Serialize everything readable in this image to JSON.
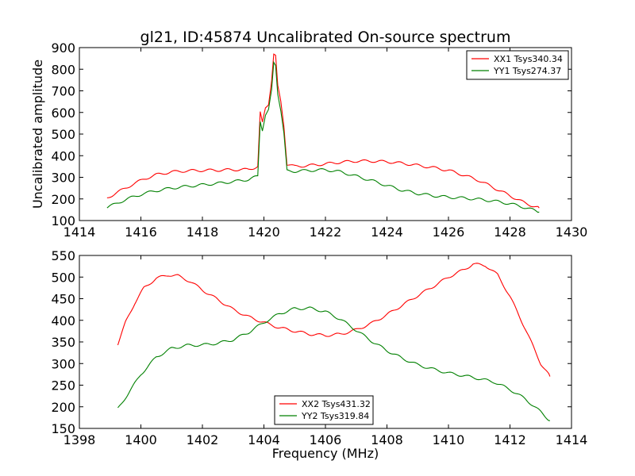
{
  "figure_title": "gl21, ID:45874 Uncalibrated On-source spectrum",
  "chart_data": [
    {
      "type": "line",
      "title": "gl21, ID:45874 Uncalibrated On-source spectrum",
      "xlabel": "",
      "ylabel": "Uncalibrated amplitude",
      "xlim": [
        1414,
        1430
      ],
      "ylim": [
        100,
        900
      ],
      "xticks": [
        1414,
        1416,
        1418,
        1420,
        1422,
        1424,
        1426,
        1428,
        1430
      ],
      "yticks": [
        100,
        200,
        300,
        400,
        500,
        600,
        700,
        800,
        900
      ],
      "grid": false,
      "legend_position": "top-right",
      "series": [
        {
          "name": "XX1 Tsys340.34",
          "color": "#ff0000",
          "x": [
            1414.9,
            1415.3,
            1415.7,
            1416.1,
            1416.5,
            1417.0,
            1417.5,
            1418.0,
            1418.5,
            1419.0,
            1419.5,
            1419.8,
            1419.88,
            1419.95,
            1420.05,
            1420.15,
            1420.25,
            1420.32,
            1420.38,
            1420.45,
            1420.55,
            1420.65,
            1420.75,
            1421.0,
            1421.5,
            1422.0,
            1422.5,
            1423.0,
            1423.5,
            1424.0,
            1424.5,
            1425.0,
            1425.5,
            1426.0,
            1426.5,
            1427.0,
            1427.5,
            1428.0,
            1428.5,
            1428.95
          ],
          "y": [
            205,
            235,
            265,
            292,
            312,
            325,
            330,
            332,
            333,
            335,
            336,
            350,
            600,
            550,
            620,
            640,
            750,
            870,
            860,
            720,
            650,
            540,
            360,
            350,
            355,
            362,
            370,
            375,
            375,
            372,
            365,
            355,
            345,
            332,
            310,
            285,
            250,
            215,
            180,
            158
          ]
        },
        {
          "name": "YY1 Tsys274.37",
          "color": "#008000",
          "x": [
            1414.9,
            1415.3,
            1415.7,
            1416.1,
            1416.5,
            1417.0,
            1417.5,
            1418.0,
            1418.5,
            1419.0,
            1419.5,
            1419.8,
            1419.88,
            1419.95,
            1420.05,
            1420.15,
            1420.25,
            1420.32,
            1420.38,
            1420.45,
            1420.55,
            1420.65,
            1420.75,
            1421.0,
            1421.5,
            1422.0,
            1422.5,
            1423.0,
            1423.5,
            1424.0,
            1424.5,
            1425.0,
            1425.5,
            1426.0,
            1426.5,
            1427.0,
            1427.5,
            1428.0,
            1428.5,
            1428.95
          ],
          "y": [
            160,
            185,
            207,
            225,
            238,
            250,
            258,
            265,
            272,
            280,
            290,
            305,
            560,
            520,
            590,
            610,
            700,
            830,
            820,
            690,
            610,
            500,
            330,
            328,
            332,
            335,
            325,
            305,
            285,
            262,
            240,
            225,
            215,
            208,
            204,
            198,
            190,
            178,
            160,
            140
          ]
        }
      ]
    },
    {
      "type": "line",
      "title": "",
      "xlabel": "Frequency (MHz)",
      "ylabel": "",
      "xlim": [
        1398,
        1414
      ],
      "ylim": [
        150,
        550
      ],
      "xticks": [
        1398,
        1400,
        1402,
        1404,
        1406,
        1408,
        1410,
        1412,
        1414
      ],
      "yticks": [
        150,
        200,
        250,
        300,
        350,
        400,
        450,
        500,
        550
      ],
      "grid": false,
      "legend_position": "bottom-center",
      "series": [
        {
          "name": "XX2 Tsys431.32",
          "color": "#ff0000",
          "x": [
            1399.25,
            1399.5,
            1399.8,
            1400.1,
            1400.5,
            1400.9,
            1401.2,
            1401.6,
            1402.0,
            1402.5,
            1403.0,
            1403.5,
            1404.0,
            1404.5,
            1405.0,
            1405.5,
            1406.0,
            1406.5,
            1407.0,
            1407.5,
            1408.0,
            1408.5,
            1409.0,
            1409.5,
            1410.0,
            1410.5,
            1410.8,
            1411.2,
            1411.6,
            1412.0,
            1412.5,
            1413.0,
            1413.3
          ],
          "y": [
            345,
            395,
            440,
            475,
            497,
            505,
            503,
            490,
            470,
            448,
            425,
            408,
            395,
            383,
            375,
            368,
            365,
            368,
            378,
            393,
            413,
            435,
            457,
            478,
            500,
            517,
            530,
            527,
            505,
            455,
            380,
            300,
            270
          ]
        },
        {
          "name": "YY2 Tsys319.84",
          "color": "#008000",
          "x": [
            1399.25,
            1399.6,
            1400.0,
            1400.5,
            1401.0,
            1401.5,
            1402.0,
            1402.5,
            1403.0,
            1403.5,
            1404.0,
            1404.5,
            1405.0,
            1405.5,
            1406.0,
            1406.5,
            1407.0,
            1407.5,
            1408.0,
            1408.5,
            1409.0,
            1409.5,
            1410.0,
            1410.5,
            1411.0,
            1411.5,
            1412.0,
            1412.5,
            1413.0,
            1413.3
          ],
          "y": [
            195,
            232,
            275,
            315,
            335,
            342,
            343,
            347,
            355,
            372,
            395,
            415,
            427,
            428,
            420,
            402,
            377,
            352,
            330,
            312,
            297,
            287,
            278,
            272,
            265,
            257,
            240,
            218,
            188,
            168
          ]
        }
      ]
    }
  ]
}
